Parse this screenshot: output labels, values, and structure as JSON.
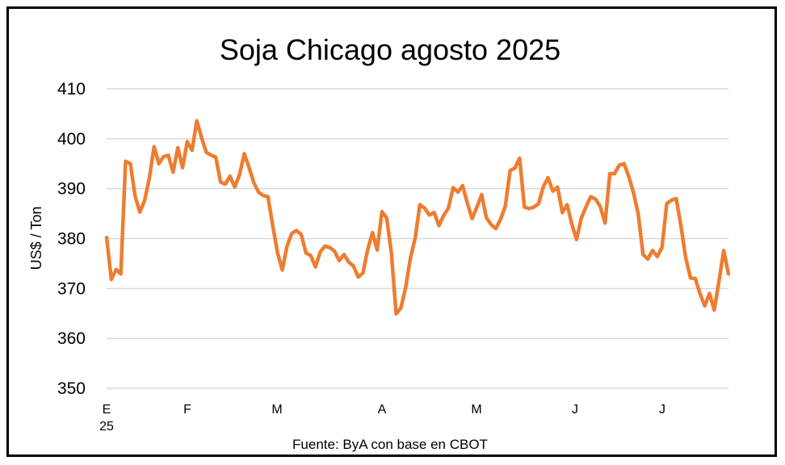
{
  "chart_data": {
    "type": "line",
    "title": "Soja Chicago agosto 2025",
    "ylabel": "US$ / Ton",
    "ylim": [
      350,
      410
    ],
    "yticks": [
      350,
      360,
      370,
      380,
      390,
      400,
      410
    ],
    "grid": true,
    "xticks": [
      "E",
      "F",
      "M",
      "A",
      "M",
      "J",
      "J"
    ],
    "xtick_sub": "25",
    "source": "Fuente: ByA con base en CBOT",
    "line_color": "#ED7D31",
    "series": [
      {
        "values": [
          380.2,
          371.8,
          373.8,
          372.9,
          395.5,
          395.0,
          388.5,
          385.3,
          387.6,
          392.1,
          398.4,
          395.0,
          396.4,
          396.7,
          393.3,
          398.2,
          394.2,
          399.4,
          397.7,
          403.6,
          400.2,
          397.3,
          396.7,
          396.3,
          391.3,
          390.9,
          392.5,
          390.3,
          392.8,
          397.0,
          394.3,
          391.2,
          389.3,
          388.6,
          388.4,
          382.6,
          377.2,
          373.7,
          378.5,
          381.0,
          381.6,
          380.8,
          377.1,
          376.6,
          374.3,
          377.3,
          378.5,
          378.2,
          377.5,
          375.6,
          376.8,
          375.3,
          374.5,
          372.3,
          373.1,
          377.8,
          381.2,
          377.7,
          385.4,
          384.1,
          377.0,
          364.9,
          366.1,
          370.2,
          376.1,
          380.1,
          386.8,
          386.1,
          384.7,
          385.2,
          382.6,
          384.6,
          386.1,
          390.2,
          389.3,
          390.6,
          387.1,
          384.0,
          386.3,
          388.8,
          384.2,
          382.8,
          382.0,
          383.9,
          386.5,
          393.6,
          394.1,
          396.1,
          386.3,
          386.0,
          386.3,
          387.0,
          390.4,
          392.2,
          389.5,
          390.3,
          385.2,
          386.8,
          382.9,
          379.8,
          384.1,
          386.4,
          388.4,
          387.9,
          386.4,
          383.1,
          393.0,
          393.0,
          394.7,
          395.0,
          392.4,
          389.2,
          384.9,
          376.8,
          375.9,
          377.6,
          376.4,
          378.2,
          387.0,
          387.7,
          388.0,
          382.5,
          376.1,
          372.1,
          372.0,
          369.0,
          366.5,
          369.0,
          365.7,
          371.4,
          377.6,
          372.9
        ]
      }
    ]
  }
}
